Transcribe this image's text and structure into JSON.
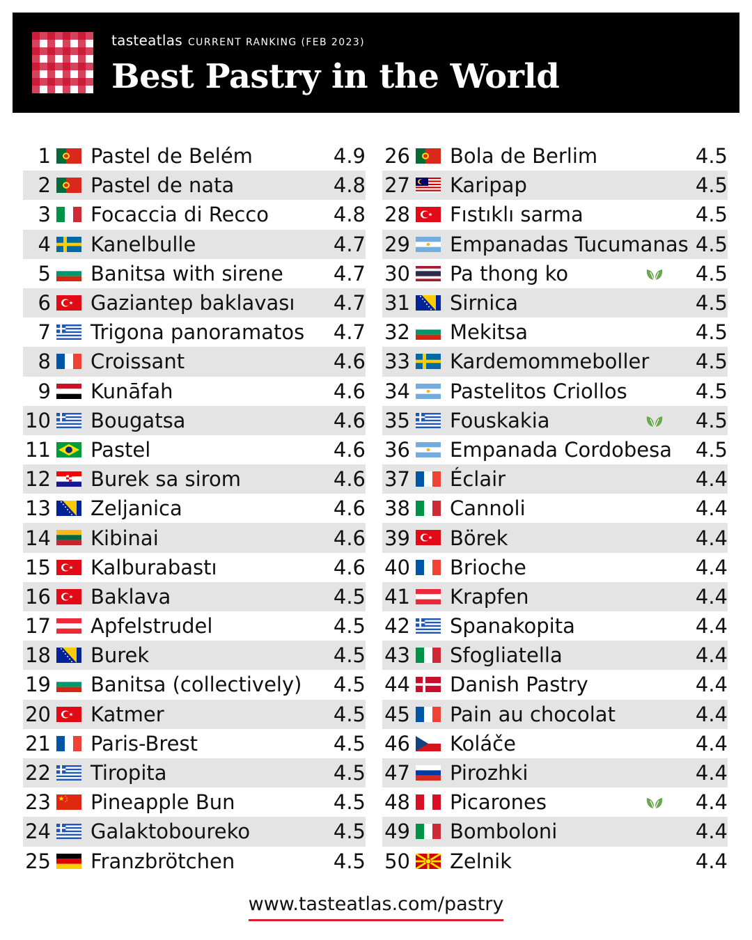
{
  "header": {
    "brand": "tasteatlas",
    "ranking_label": "CURRENT RANKING (FEB 2023)",
    "title": "Best Pastry in the World"
  },
  "colors": {
    "header_bg": "#000000",
    "accent_red": "#d8202e",
    "row_alt_bg": "#e4e4e4",
    "leaf_green": "#6aa84f"
  },
  "items": [
    {
      "rank": "1",
      "flag": "portugal",
      "name": "Pastel de Belém",
      "score": "4.9"
    },
    {
      "rank": "2",
      "flag": "portugal",
      "name": "Pastel de nata",
      "score": "4.8"
    },
    {
      "rank": "3",
      "flag": "italy",
      "name": "Focaccia di Recco",
      "score": "4.8"
    },
    {
      "rank": "4",
      "flag": "sweden",
      "name": "Kanelbulle",
      "score": "4.7"
    },
    {
      "rank": "5",
      "flag": "bulgaria",
      "name": "Banitsa with sirene",
      "score": "4.7"
    },
    {
      "rank": "6",
      "flag": "turkey",
      "name": "Gaziantep baklavası",
      "score": "4.7"
    },
    {
      "rank": "7",
      "flag": "greece",
      "name": "Trigona panoramatos",
      "score": "4.7"
    },
    {
      "rank": "8",
      "flag": "france",
      "name": "Croissant",
      "score": "4.6"
    },
    {
      "rank": "9",
      "flag": "egypt",
      "name": "Kunāfah",
      "score": "4.6"
    },
    {
      "rank": "10",
      "flag": "greece",
      "name": "Bougatsa",
      "score": "4.6"
    },
    {
      "rank": "11",
      "flag": "brazil",
      "name": "Pastel",
      "score": "4.6"
    },
    {
      "rank": "12",
      "flag": "croatia",
      "name": "Burek sa sirom",
      "score": "4.6"
    },
    {
      "rank": "13",
      "flag": "bosnia",
      "name": "Zeljanica",
      "score": "4.6"
    },
    {
      "rank": "14",
      "flag": "lithuania",
      "name": "Kibinai",
      "score": "4.6"
    },
    {
      "rank": "15",
      "flag": "turkey",
      "name": "Kalburabastı",
      "score": "4.6"
    },
    {
      "rank": "16",
      "flag": "turkey",
      "name": "Baklava",
      "score": "4.5"
    },
    {
      "rank": "17",
      "flag": "austria",
      "name": "Apfelstrudel",
      "score": "4.5"
    },
    {
      "rank": "18",
      "flag": "bosnia",
      "name": "Burek",
      "score": "4.5"
    },
    {
      "rank": "19",
      "flag": "bulgaria",
      "name": "Banitsa (collectively)",
      "score": "4.5"
    },
    {
      "rank": "20",
      "flag": "turkey",
      "name": "Katmer",
      "score": "4.5"
    },
    {
      "rank": "21",
      "flag": "france",
      "name": "Paris-Brest",
      "score": "4.5"
    },
    {
      "rank": "22",
      "flag": "greece",
      "name": "Tiropita",
      "score": "4.5"
    },
    {
      "rank": "23",
      "flag": "china",
      "name": "Pineapple Bun",
      "score": "4.5"
    },
    {
      "rank": "24",
      "flag": "greece",
      "name": "Galaktoboureko",
      "score": "4.5"
    },
    {
      "rank": "25",
      "flag": "germany",
      "name": "Franzbrötchen",
      "score": "4.5"
    },
    {
      "rank": "26",
      "flag": "portugal",
      "name": "Bola de Berlim",
      "score": "4.5"
    },
    {
      "rank": "27",
      "flag": "malaysia",
      "name": "Karipap",
      "score": "4.5"
    },
    {
      "rank": "28",
      "flag": "turkey",
      "name": "Fıstıklı sarma",
      "score": "4.5"
    },
    {
      "rank": "29",
      "flag": "argentina",
      "name": "Empanadas Tucumanas",
      "score": "4.5"
    },
    {
      "rank": "30",
      "flag": "thailand",
      "name": "Pa thong ko",
      "score": "4.5",
      "leaf": true
    },
    {
      "rank": "31",
      "flag": "bosnia",
      "name": "Sirnica",
      "score": "4.5"
    },
    {
      "rank": "32",
      "flag": "bulgaria",
      "name": "Mekitsa",
      "score": "4.5"
    },
    {
      "rank": "33",
      "flag": "sweden",
      "name": "Kardemommeboller",
      "score": "4.5"
    },
    {
      "rank": "34",
      "flag": "argentina",
      "name": "Pastelitos Criollos",
      "score": "4.5"
    },
    {
      "rank": "35",
      "flag": "greece",
      "name": "Fouskakia",
      "score": "4.5",
      "leaf": true
    },
    {
      "rank": "36",
      "flag": "argentina",
      "name": "Empanada Cordobesa",
      "score": "4.5"
    },
    {
      "rank": "37",
      "flag": "france",
      "name": "Éclair",
      "score": "4.4"
    },
    {
      "rank": "38",
      "flag": "italy",
      "name": "Cannoli",
      "score": "4.4"
    },
    {
      "rank": "39",
      "flag": "turkey",
      "name": "Börek",
      "score": "4.4"
    },
    {
      "rank": "40",
      "flag": "france",
      "name": "Brioche",
      "score": "4.4"
    },
    {
      "rank": "41",
      "flag": "austria",
      "name": "Krapfen",
      "score": "4.4"
    },
    {
      "rank": "42",
      "flag": "greece",
      "name": "Spanakopita",
      "score": "4.4"
    },
    {
      "rank": "43",
      "flag": "italy",
      "name": "Sfogliatella",
      "score": "4.4"
    },
    {
      "rank": "44",
      "flag": "denmark",
      "name": "Danish Pastry",
      "score": "4.4"
    },
    {
      "rank": "45",
      "flag": "france",
      "name": "Pain au chocolat",
      "score": "4.4"
    },
    {
      "rank": "46",
      "flag": "czech",
      "name": "Koláče",
      "score": "4.4"
    },
    {
      "rank": "47",
      "flag": "russia",
      "name": "Pirozhki",
      "score": "4.4"
    },
    {
      "rank": "48",
      "flag": "peru",
      "name": "Picarones",
      "score": "4.4",
      "leaf": true
    },
    {
      "rank": "49",
      "flag": "italy",
      "name": "Bomboloni",
      "score": "4.4"
    },
    {
      "rank": "50",
      "flag": "macedonia",
      "name": "Zelnik",
      "score": "4.4"
    }
  ],
  "footer": {
    "url": "www.tasteatlas.com/pastry"
  }
}
